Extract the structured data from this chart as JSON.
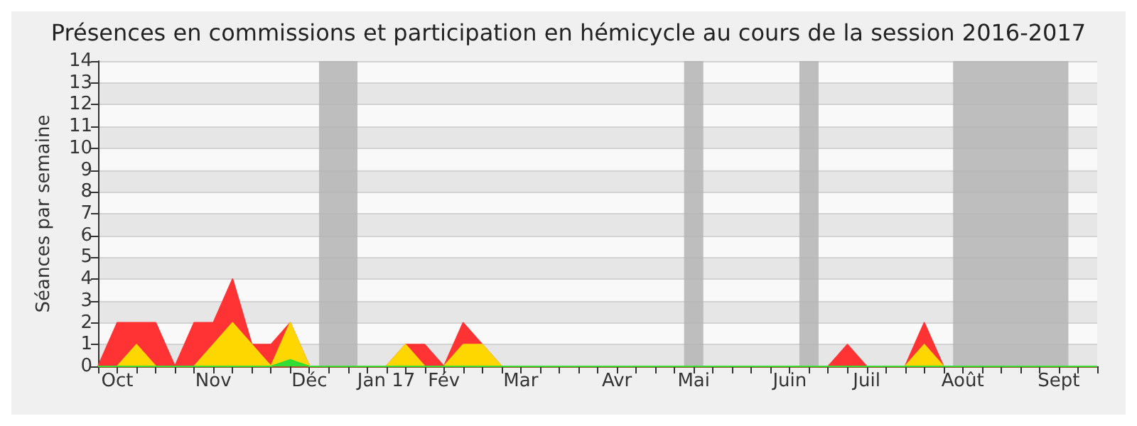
{
  "chart_data": {
    "type": "area",
    "title": "Présences en commissions et participation en hémicycle au cours de la session 2016-2017",
    "ylabel": "Séances par semaine",
    "categories": [
      null,
      "Oct",
      null,
      null,
      null,
      null,
      "Nov",
      null,
      null,
      null,
      null,
      "Déc",
      null,
      null,
      null,
      "Jan 17",
      null,
      null,
      "Fév",
      null,
      null,
      null,
      "Mar",
      null,
      null,
      null,
      null,
      "Avr",
      null,
      null,
      null,
      "Mai",
      null,
      null,
      null,
      null,
      "Juin",
      null,
      null,
      null,
      "Juil",
      null,
      null,
      null,
      null,
      "Août",
      null,
      null,
      null,
      null,
      "Sept",
      null,
      null
    ],
    "series": [
      {
        "color": "#ff3333",
        "values": [
          0,
          2,
          2,
          2,
          0,
          2,
          2,
          4,
          1,
          1,
          2,
          0,
          0,
          0,
          0,
          0,
          1,
          1,
          0,
          2,
          1,
          0,
          0,
          0,
          0,
          0,
          0,
          0,
          0,
          0,
          0,
          0,
          0,
          0,
          0,
          0,
          0,
          0,
          0,
          1,
          0,
          0,
          0,
          2,
          0,
          0,
          0,
          0,
          0,
          0,
          0,
          0,
          0
        ]
      },
      {
        "color": "#ffd700",
        "values": [
          0,
          0,
          1,
          0,
          0,
          0,
          1,
          2,
          1,
          0,
          2,
          0,
          0,
          0,
          0,
          0,
          1,
          0,
          0,
          1,
          1,
          0,
          0,
          0,
          0,
          0,
          0,
          0,
          0,
          0,
          0,
          0,
          0,
          0,
          0,
          0,
          0,
          0,
          0,
          0,
          0,
          0,
          0,
          1,
          0,
          0,
          0,
          0,
          0,
          0,
          0,
          0,
          0
        ]
      },
      {
        "color": "#33dd33",
        "values": [
          0,
          0,
          0,
          0,
          0,
          0,
          0,
          0,
          0,
          0,
          0.3,
          0,
          0,
          0,
          0,
          0,
          0,
          0,
          0,
          0,
          0,
          0,
          0,
          0,
          0,
          0,
          0,
          0,
          0,
          0,
          0,
          0,
          0,
          0,
          0,
          0,
          0,
          0,
          0,
          0,
          0,
          0,
          0,
          0,
          0,
          0,
          0,
          0,
          0,
          0,
          0,
          0,
          0
        ]
      }
    ],
    "ylim": [
      0,
      14
    ],
    "yticks": [
      0,
      1,
      2,
      3,
      4,
      5,
      6,
      7,
      8,
      9,
      10,
      11,
      12,
      13,
      14
    ],
    "grid": "y"
  }
}
